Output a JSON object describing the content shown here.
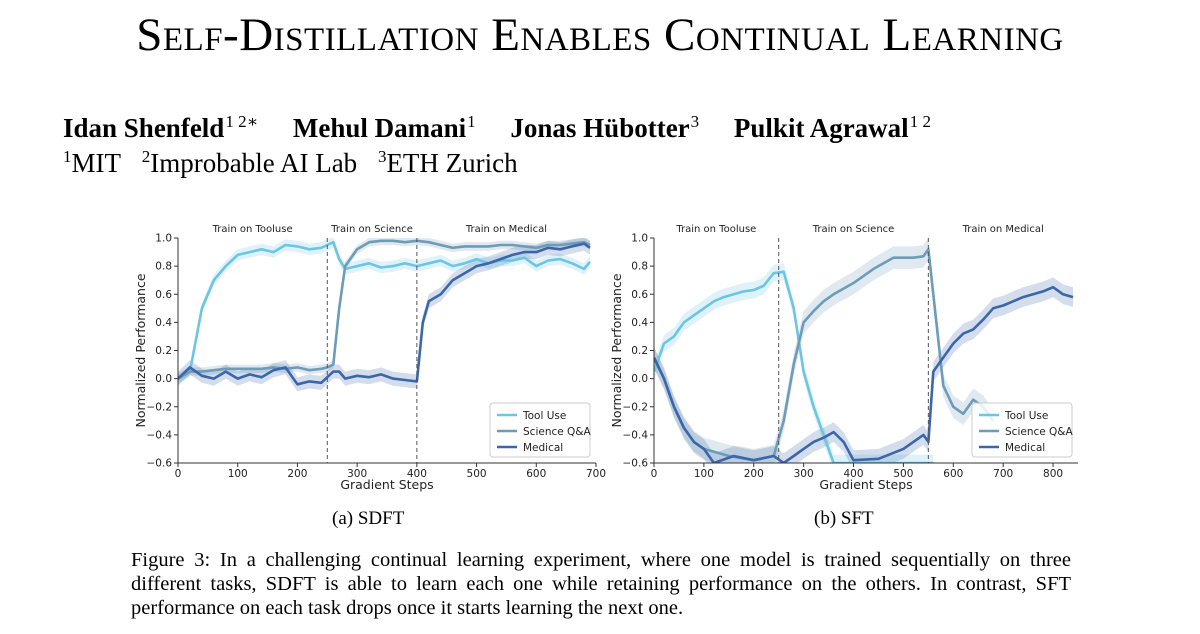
{
  "paper": {
    "title": "Self-Distillation Enables Continual Learning",
    "authors": [
      {
        "name": "Idan Shenfeld",
        "affil": "1 2∗"
      },
      {
        "name": "Mehul Damani",
        "affil": "1"
      },
      {
        "name": "Jonas Hübotter",
        "affil": "3"
      },
      {
        "name": "Pulkit Agrawal",
        "affil": "1 2"
      }
    ],
    "affiliations": [
      {
        "num": "1",
        "name": "MIT"
      },
      {
        "num": "2",
        "name": "Improbable AI Lab"
      },
      {
        "num": "3",
        "name": "ETH Zurich"
      }
    ],
    "subcaptions": [
      "(a) SDFT",
      "(b) SFT"
    ],
    "caption": "Figure 3: In a challenging continual learning experiment, where one model is trained sequentially on three different tasks, SDFT is able to learn each one while retaining performance on the others. In contrast, SFT performance on each task drops once it starts learning the next one."
  },
  "colors": {
    "tool_use": "#6CC5E3",
    "science_qa": "#6D9CB8",
    "medical": "#3C66AA"
  },
  "chart_data": [
    {
      "type": "line",
      "panel": "(a) SDFT",
      "xlabel": "Gradient Steps",
      "ylabel": "Normalized Performance",
      "xlim": [
        0,
        700
      ],
      "ylim": [
        -0.6,
        1.0
      ],
      "xticks": [
        0,
        100,
        200,
        300,
        400,
        500,
        600,
        700
      ],
      "yticks": [
        -0.6,
        -0.4,
        -0.2,
        0.0,
        0.2,
        0.4,
        0.6,
        0.8,
        1.0
      ],
      "phase_boundaries": [
        250,
        400
      ],
      "phase_labels": [
        "Train on Tooluse",
        "Train on Science",
        "Train on Medical"
      ],
      "legend_position": "bottom-right",
      "series": [
        {
          "name": "Tool Use",
          "color_key": "tool_use",
          "x": [
            0,
            20,
            40,
            60,
            80,
            100,
            120,
            140,
            160,
            180,
            200,
            220,
            240,
            250,
            260,
            270,
            280,
            300,
            320,
            340,
            360,
            380,
            400,
            420,
            440,
            460,
            480,
            500,
            520,
            540,
            560,
            580,
            600,
            620,
            640,
            660,
            680,
            690
          ],
          "y": [
            0.0,
            0.05,
            0.5,
            0.7,
            0.8,
            0.88,
            0.9,
            0.92,
            0.9,
            0.95,
            0.94,
            0.92,
            0.93,
            0.95,
            0.97,
            0.85,
            0.78,
            0.8,
            0.82,
            0.79,
            0.8,
            0.82,
            0.8,
            0.82,
            0.84,
            0.8,
            0.82,
            0.85,
            0.82,
            0.84,
            0.84,
            0.86,
            0.8,
            0.84,
            0.85,
            0.82,
            0.78,
            0.83
          ],
          "band": 0.04
        },
        {
          "name": "Science Q&A",
          "color_key": "science_qa",
          "x": [
            0,
            20,
            40,
            60,
            80,
            100,
            120,
            140,
            160,
            180,
            200,
            220,
            240,
            250,
            260,
            270,
            280,
            300,
            320,
            340,
            360,
            380,
            400,
            420,
            440,
            460,
            480,
            500,
            520,
            540,
            560,
            580,
            600,
            620,
            640,
            660,
            680,
            690
          ],
          "y": [
            0.0,
            0.05,
            0.05,
            0.06,
            0.07,
            0.07,
            0.07,
            0.07,
            0.08,
            0.07,
            0.08,
            0.06,
            0.07,
            0.08,
            0.1,
            0.5,
            0.8,
            0.92,
            0.97,
            0.98,
            0.98,
            0.97,
            0.98,
            0.97,
            0.95,
            0.93,
            0.94,
            0.94,
            0.94,
            0.95,
            0.95,
            0.94,
            0.93,
            0.95,
            0.95,
            0.96,
            0.97,
            0.95
          ],
          "band": 0.03
        },
        {
          "name": "Medical",
          "color_key": "medical",
          "x": [
            0,
            20,
            40,
            60,
            80,
            100,
            120,
            140,
            160,
            180,
            200,
            220,
            240,
            250,
            260,
            270,
            280,
            300,
            320,
            340,
            360,
            380,
            400,
            410,
            420,
            440,
            460,
            480,
            500,
            520,
            540,
            560,
            580,
            600,
            620,
            640,
            660,
            680,
            690
          ],
          "y": [
            0.0,
            0.08,
            0.02,
            0.0,
            0.05,
            0.0,
            0.03,
            0.01,
            0.06,
            0.08,
            -0.04,
            -0.02,
            -0.03,
            0.01,
            0.05,
            0.05,
            0.0,
            0.02,
            0.01,
            0.03,
            0.0,
            -0.01,
            -0.02,
            0.4,
            0.55,
            0.6,
            0.7,
            0.75,
            0.8,
            0.82,
            0.85,
            0.88,
            0.9,
            0.9,
            0.93,
            0.92,
            0.94,
            0.96,
            0.93
          ],
          "band": 0.05
        }
      ]
    },
    {
      "type": "line",
      "panel": "(b) SFT",
      "xlabel": "Gradient Steps",
      "ylabel": "Normalized Performance",
      "xlim": [
        0,
        850
      ],
      "ylim": [
        -0.6,
        1.0
      ],
      "xticks": [
        0,
        100,
        200,
        300,
        400,
        500,
        600,
        700,
        800
      ],
      "yticks": [
        -0.6,
        -0.4,
        -0.2,
        0.0,
        0.2,
        0.4,
        0.6,
        0.8,
        1.0
      ],
      "phase_boundaries": [
        250,
        550
      ],
      "phase_labels": [
        "Train on Tooluse",
        "Train on Science",
        "Train on Medical"
      ],
      "legend_position": "bottom-right",
      "series": [
        {
          "name": "Tool Use",
          "color_key": "tool_use",
          "x": [
            0,
            20,
            40,
            60,
            80,
            100,
            120,
            140,
            160,
            180,
            200,
            220,
            240,
            260,
            280,
            300,
            320,
            340,
            360,
            380,
            400,
            500,
            540,
            560
          ],
          "y": [
            0.05,
            0.25,
            0.3,
            0.4,
            0.45,
            0.5,
            0.55,
            0.58,
            0.6,
            0.62,
            0.63,
            0.66,
            0.75,
            0.76,
            0.5,
            0.05,
            -0.2,
            -0.4,
            -0.6,
            -0.6,
            -0.6,
            -0.6,
            -0.6,
            -0.6
          ],
          "band": 0.06
        },
        {
          "name": "Science Q&A",
          "color_key": "science_qa",
          "x": [
            0,
            20,
            40,
            60,
            80,
            100,
            150,
            200,
            240,
            260,
            280,
            300,
            320,
            340,
            360,
            400,
            440,
            480,
            520,
            540,
            550,
            560,
            580,
            600,
            620,
            640,
            660,
            680
          ],
          "y": [
            0.15,
            0.0,
            -0.2,
            -0.35,
            -0.45,
            -0.5,
            -0.55,
            -0.58,
            -0.55,
            -0.3,
            0.1,
            0.4,
            0.48,
            0.55,
            0.6,
            0.68,
            0.78,
            0.86,
            0.86,
            0.87,
            0.92,
            0.6,
            -0.05,
            -0.2,
            -0.25,
            -0.15,
            -0.2,
            -0.3
          ],
          "band": 0.08
        },
        {
          "name": "Medical",
          "color_key": "medical",
          "x": [
            0,
            20,
            40,
            60,
            80,
            100,
            120,
            160,
            200,
            240,
            260,
            280,
            300,
            320,
            340,
            360,
            380,
            400,
            450,
            500,
            520,
            540,
            550,
            560,
            580,
            600,
            620,
            640,
            660,
            680,
            700,
            720,
            740,
            760,
            780,
            800,
            820,
            840
          ],
          "y": [
            0.15,
            0.0,
            -0.2,
            -0.35,
            -0.45,
            -0.5,
            -0.6,
            -0.55,
            -0.58,
            -0.55,
            -0.6,
            -0.55,
            -0.5,
            -0.45,
            -0.42,
            -0.38,
            -0.45,
            -0.58,
            -0.57,
            -0.5,
            -0.45,
            -0.4,
            -0.45,
            0.05,
            0.15,
            0.25,
            0.32,
            0.35,
            0.42,
            0.5,
            0.52,
            0.55,
            0.58,
            0.6,
            0.62,
            0.65,
            0.6,
            0.58
          ],
          "band": 0.07
        }
      ]
    }
  ]
}
